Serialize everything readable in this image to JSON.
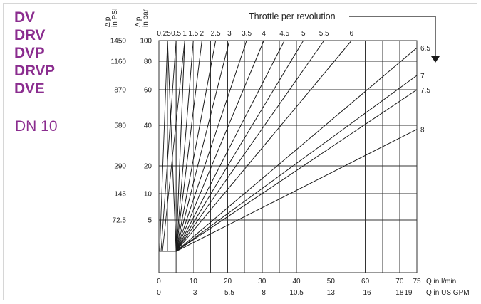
{
  "sidebar": {
    "models": [
      "DV",
      "DRV",
      "DVP",
      "DRVP",
      "DVE"
    ],
    "size": "DN 10"
  },
  "colors": {
    "accent": "#8b2d8f",
    "grid": "#333333",
    "border": "#d6d6d6"
  },
  "chart_data": {
    "type": "line",
    "title": "Throttle per revolution",
    "y_left_label": [
      "Δ p",
      "in PSI"
    ],
    "y_label": [
      "Δ p",
      "in bar"
    ],
    "x_label_lmin": "Q in l/min",
    "x_label_gpm": "Q in US GPM",
    "ylim": [
      0,
      100
    ],
    "xlim": [
      0,
      75
    ],
    "y_ticks": [
      5,
      10,
      20,
      40,
      60,
      80,
      100
    ],
    "psi_ticks": [
      {
        "bar": 5,
        "label": "72.5"
      },
      {
        "bar": 10,
        "label": "145"
      },
      {
        "bar": 20,
        "label": "290"
      },
      {
        "bar": 40,
        "label": "580"
      },
      {
        "bar": 60,
        "label": "870"
      },
      {
        "bar": 80,
        "label": "1160"
      },
      {
        "bar": 100,
        "label": "1450"
      }
    ],
    "x_ticks_lmin": [
      {
        "v": 0,
        "label": "0"
      },
      {
        "v": 10,
        "label": "10"
      },
      {
        "v": 20,
        "label": "20"
      },
      {
        "v": 30,
        "label": "30"
      },
      {
        "v": 40,
        "label": "40"
      },
      {
        "v": 50,
        "label": "50"
      },
      {
        "v": 60,
        "label": "60"
      },
      {
        "v": 70,
        "label": "70"
      },
      {
        "v": 75,
        "label": "75"
      }
    ],
    "x_ticks_gpm": [
      {
        "v": 0,
        "label": "0"
      },
      {
        "v": 10.5,
        "label": "3"
      },
      {
        "v": 20.5,
        "label": "5.5"
      },
      {
        "v": 30.5,
        "label": "8"
      },
      {
        "v": 40,
        "label": "10.5"
      },
      {
        "v": 50,
        "label": "13"
      },
      {
        "v": 60.5,
        "label": "16"
      },
      {
        "v": 70,
        "label": "18"
      },
      {
        "v": 72.5,
        "label": "19"
      }
    ],
    "x_grid_minor": [
      2.5,
      5,
      7.5,
      12.5,
      15,
      17.5,
      25,
      35,
      45,
      55,
      65
    ],
    "min_flow": 5,
    "series": [
      {
        "name": "0.25",
        "end_x": 2.5,
        "end_y": 100
      },
      {
        "name": "0.5",
        "end_x": 5,
        "end_y": 100
      },
      {
        "name": "1",
        "end_x": 7.5,
        "end_y": 100
      },
      {
        "name": "1.5",
        "end_x": 10,
        "end_y": 100
      },
      {
        "name": "2",
        "end_x": 12.5,
        "end_y": 100
      },
      {
        "name": "2.5",
        "end_x": 16.5,
        "end_y": 100
      },
      {
        "name": "3",
        "end_x": 20.5,
        "end_y": 100
      },
      {
        "name": "3.5",
        "end_x": 25.5,
        "end_y": 100
      },
      {
        "name": "4",
        "end_x": 30.5,
        "end_y": 100
      },
      {
        "name": "4.5",
        "end_x": 36.5,
        "end_y": 100
      },
      {
        "name": "5",
        "end_x": 42,
        "end_y": 100
      },
      {
        "name": "5.5",
        "end_x": 48,
        "end_y": 100
      },
      {
        "name": "6",
        "end_x": 56,
        "end_y": 100
      },
      {
        "name": "6.5",
        "end_x": 75,
        "end_y": 93
      },
      {
        "name": "7",
        "end_x": 75,
        "end_y": 70
      },
      {
        "name": "7.5",
        "end_x": 75,
        "end_y": 60
      },
      {
        "name": "8",
        "end_x": 75,
        "end_y": 38
      }
    ]
  }
}
